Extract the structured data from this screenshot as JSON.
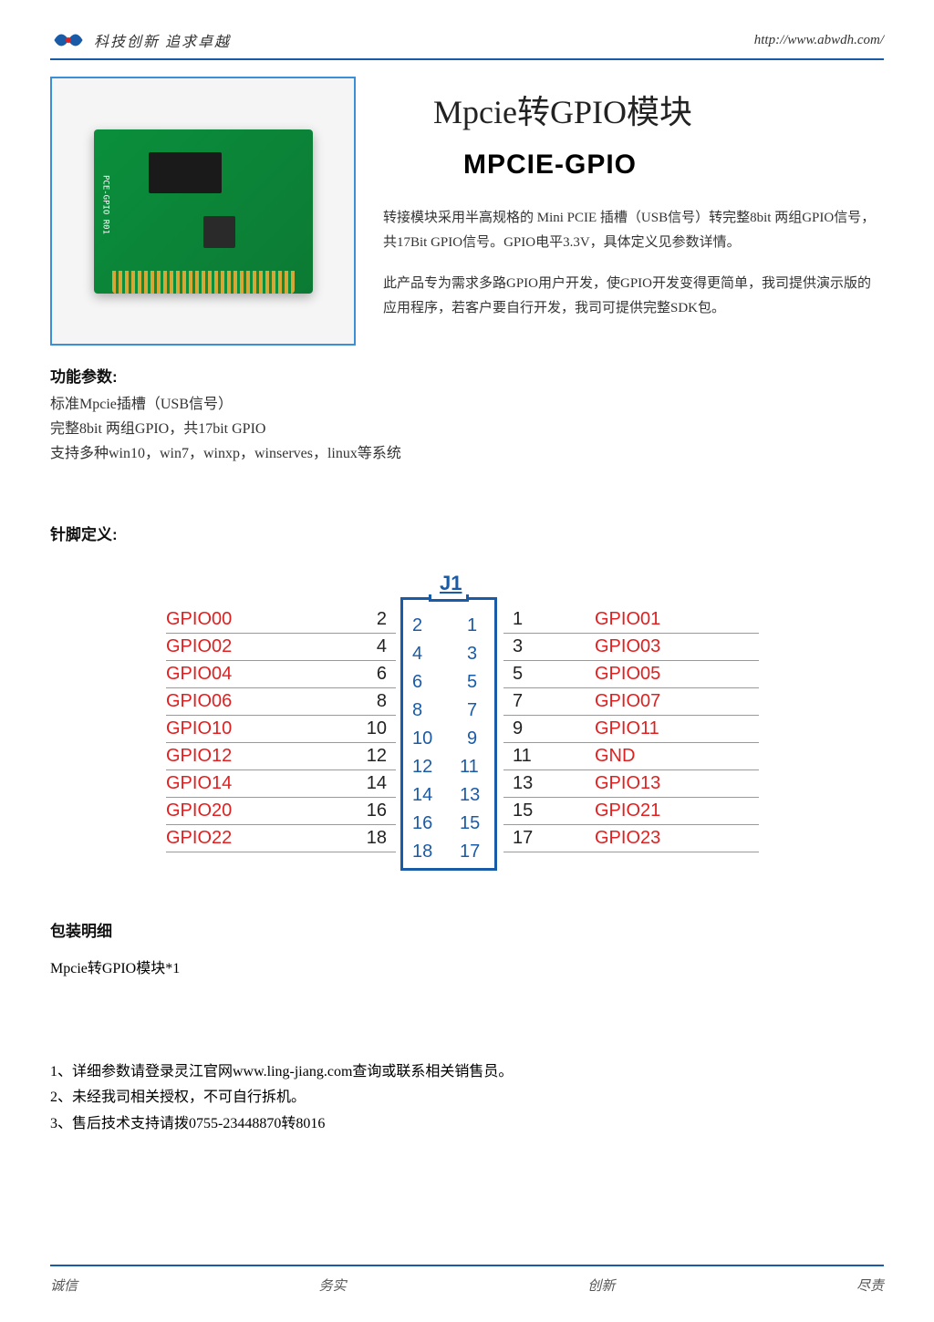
{
  "header": {
    "tagline": "科技创新  追求卓越",
    "url": "http://www.abwdh.com/",
    "logo_color": "#1a5ba8"
  },
  "product": {
    "main_title": "Mpcie转GPIO模块",
    "sub_title": "MPCIE-GPIO",
    "desc1": "转接模块采用半高规格的 Mini PCIE 插槽（USB信号）转完整8bit 两组GPIO信号，共17Bit GPIO信号。GPIO电平3.3V，具体定义见参数详情。",
    "desc2": "此产品专为需求多路GPIO用户开发，使GPIO开发变得更简单，我司提供演示版的应用程序，若客户要自行开发，我司可提供完整SDK包。"
  },
  "specs": {
    "title": "功能参数:",
    "line1": "标准Mpcie插槽（USB信号）",
    "line2": "完整8bit 两组GPIO，共17bit GPIO",
    "line3": "支持多种win10，win7，winxp，winserves，linux等系统"
  },
  "pindef": {
    "title": "针脚定义:",
    "connector_label": "J1",
    "left": [
      {
        "name": "GPIO00",
        "num": "2"
      },
      {
        "name": "GPIO02",
        "num": "4"
      },
      {
        "name": "GPIO04",
        "num": "6"
      },
      {
        "name": "GPIO06",
        "num": "8"
      },
      {
        "name": "GPIO10",
        "num": "10"
      },
      {
        "name": "GPIO12",
        "num": "12"
      },
      {
        "name": "GPIO14",
        "num": "14"
      },
      {
        "name": "GPIO20",
        "num": "16"
      },
      {
        "name": "GPIO22",
        "num": "18"
      }
    ],
    "right": [
      {
        "num": "1",
        "name": "GPIO01"
      },
      {
        "num": "3",
        "name": "GPIO03"
      },
      {
        "num": "5",
        "name": "GPIO05"
      },
      {
        "num": "7",
        "name": "GPIO07"
      },
      {
        "num": "9",
        "name": "GPIO11"
      },
      {
        "num": "11",
        "name": "GND"
      },
      {
        "num": "13",
        "name": "GPIO13"
      },
      {
        "num": "15",
        "name": "GPIO21"
      },
      {
        "num": "17",
        "name": "GPIO23"
      }
    ],
    "inner_left": [
      "2",
      "4",
      "6",
      "8",
      "10",
      "12",
      "14",
      "16",
      "18"
    ],
    "inner_right": [
      "1",
      "3",
      "5",
      "7",
      "9",
      "11",
      "13",
      "15",
      "17"
    ],
    "colors": {
      "label": "#e02020",
      "connector": "#1a5ba8",
      "num": "#222222",
      "row_border": "#999999"
    }
  },
  "package": {
    "title": "包装明细",
    "item1": "Mpcie转GPIO模块*1"
  },
  "notes": {
    "n1": "1、详细参数请登录灵江官网www.ling-jiang.com查询或联系相关销售员。",
    "n2": "2、未经我司相关授权，不可自行拆机。",
    "n3": "3、售后技术支持请拨0755-23448870转8016"
  },
  "footer": {
    "f1": "诚信",
    "f2": "务实",
    "f3": "创新",
    "f4": "尽责"
  }
}
